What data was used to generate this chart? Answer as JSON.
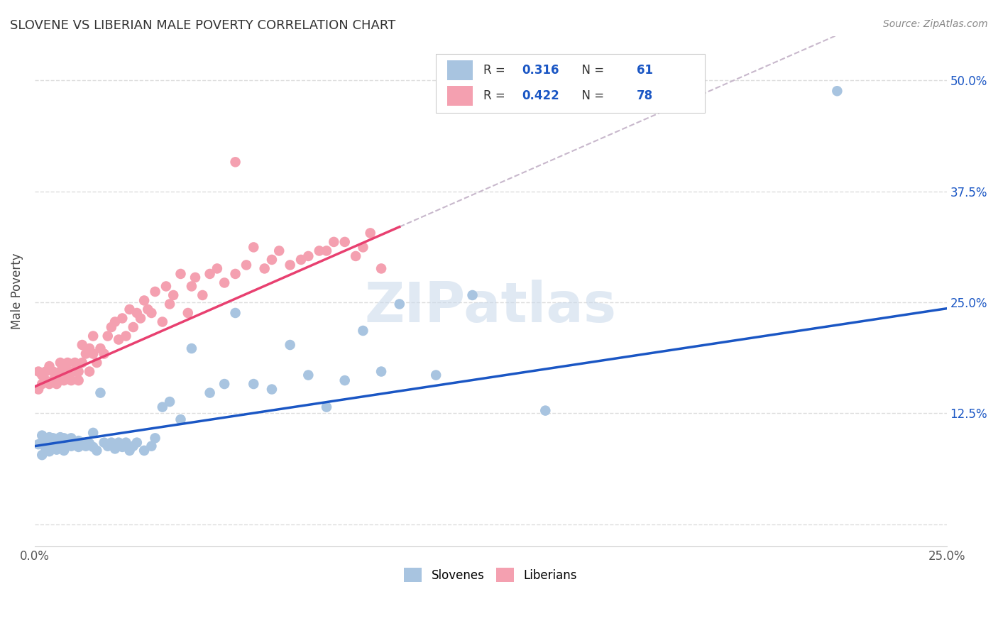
{
  "title": "SLOVENE VS LIBERIAN MALE POVERTY CORRELATION CHART",
  "source": "Source: ZipAtlas.com",
  "ylabel": "Male Poverty",
  "xlim": [
    0.0,
    0.25
  ],
  "ylim": [
    -0.025,
    0.55
  ],
  "yticks": [
    0.0,
    0.125,
    0.25,
    0.375,
    0.5
  ],
  "ytick_labels": [
    "",
    "12.5%",
    "25.0%",
    "37.5%",
    "50.0%"
  ],
  "xticks": [
    0.0,
    0.05,
    0.1,
    0.15,
    0.2,
    0.25
  ],
  "xtick_labels": [
    "0.0%",
    "",
    "",
    "",
    "",
    "25.0%"
  ],
  "slovene_color": "#a8c4e0",
  "liberian_color": "#f4a0b0",
  "slovene_line_color": "#1a56c4",
  "liberian_line_color": "#e84070",
  "liberian_dash_color": "#c8b8cc",
  "R_slovene": 0.316,
  "N_slovene": 61,
  "R_liberian": 0.422,
  "N_liberian": 78,
  "sl_intercept": 0.088,
  "sl_slope": 0.62,
  "li_intercept": 0.155,
  "li_slope": 1.8,
  "background_color": "#ffffff",
  "grid_color": "#dddddd",
  "slovene_scatter_x": [
    0.001,
    0.002,
    0.002,
    0.003,
    0.003,
    0.004,
    0.004,
    0.005,
    0.005,
    0.006,
    0.006,
    0.007,
    0.007,
    0.008,
    0.008,
    0.009,
    0.01,
    0.01,
    0.011,
    0.012,
    0.012,
    0.013,
    0.014,
    0.015,
    0.016,
    0.016,
    0.017,
    0.018,
    0.019,
    0.02,
    0.021,
    0.022,
    0.023,
    0.024,
    0.025,
    0.026,
    0.027,
    0.028,
    0.03,
    0.032,
    0.033,
    0.035,
    0.037,
    0.04,
    0.043,
    0.048,
    0.052,
    0.055,
    0.06,
    0.065,
    0.07,
    0.075,
    0.08,
    0.085,
    0.09,
    0.095,
    0.1,
    0.11,
    0.12,
    0.14,
    0.22
  ],
  "slovene_scatter_y": [
    0.09,
    0.078,
    0.1,
    0.085,
    0.095,
    0.082,
    0.098,
    0.088,
    0.097,
    0.084,
    0.096,
    0.086,
    0.098,
    0.083,
    0.097,
    0.092,
    0.088,
    0.097,
    0.093,
    0.087,
    0.094,
    0.092,
    0.088,
    0.091,
    0.087,
    0.103,
    0.083,
    0.148,
    0.092,
    0.088,
    0.092,
    0.085,
    0.092,
    0.087,
    0.092,
    0.083,
    0.088,
    0.092,
    0.083,
    0.088,
    0.097,
    0.132,
    0.138,
    0.118,
    0.198,
    0.148,
    0.158,
    0.238,
    0.158,
    0.152,
    0.202,
    0.168,
    0.132,
    0.162,
    0.218,
    0.172,
    0.248,
    0.168,
    0.258,
    0.128,
    0.488
  ],
  "liberian_scatter_x": [
    0.001,
    0.001,
    0.002,
    0.002,
    0.003,
    0.003,
    0.004,
    0.004,
    0.005,
    0.005,
    0.006,
    0.006,
    0.007,
    0.007,
    0.008,
    0.008,
    0.009,
    0.009,
    0.01,
    0.01,
    0.011,
    0.011,
    0.012,
    0.012,
    0.013,
    0.013,
    0.014,
    0.015,
    0.015,
    0.016,
    0.016,
    0.017,
    0.018,
    0.019,
    0.02,
    0.021,
    0.022,
    0.023,
    0.024,
    0.025,
    0.026,
    0.027,
    0.028,
    0.029,
    0.03,
    0.031,
    0.032,
    0.033,
    0.035,
    0.036,
    0.037,
    0.038,
    0.04,
    0.042,
    0.043,
    0.044,
    0.046,
    0.048,
    0.05,
    0.052,
    0.055,
    0.058,
    0.06,
    0.063,
    0.065,
    0.067,
    0.07,
    0.073,
    0.075,
    0.078,
    0.08,
    0.082,
    0.085,
    0.088,
    0.09,
    0.092,
    0.095,
    0.055
  ],
  "liberian_scatter_y": [
    0.152,
    0.172,
    0.158,
    0.168,
    0.162,
    0.172,
    0.158,
    0.178,
    0.162,
    0.172,
    0.158,
    0.168,
    0.172,
    0.182,
    0.162,
    0.178,
    0.168,
    0.182,
    0.172,
    0.162,
    0.172,
    0.182,
    0.162,
    0.172,
    0.182,
    0.202,
    0.192,
    0.172,
    0.198,
    0.192,
    0.212,
    0.182,
    0.198,
    0.192,
    0.212,
    0.222,
    0.228,
    0.208,
    0.232,
    0.212,
    0.242,
    0.222,
    0.238,
    0.232,
    0.252,
    0.242,
    0.238,
    0.262,
    0.228,
    0.268,
    0.248,
    0.258,
    0.282,
    0.238,
    0.268,
    0.278,
    0.258,
    0.282,
    0.288,
    0.272,
    0.282,
    0.292,
    0.312,
    0.288,
    0.298,
    0.308,
    0.292,
    0.298,
    0.302,
    0.308,
    0.308,
    0.318,
    0.318,
    0.302,
    0.312,
    0.328,
    0.288,
    0.408
  ]
}
